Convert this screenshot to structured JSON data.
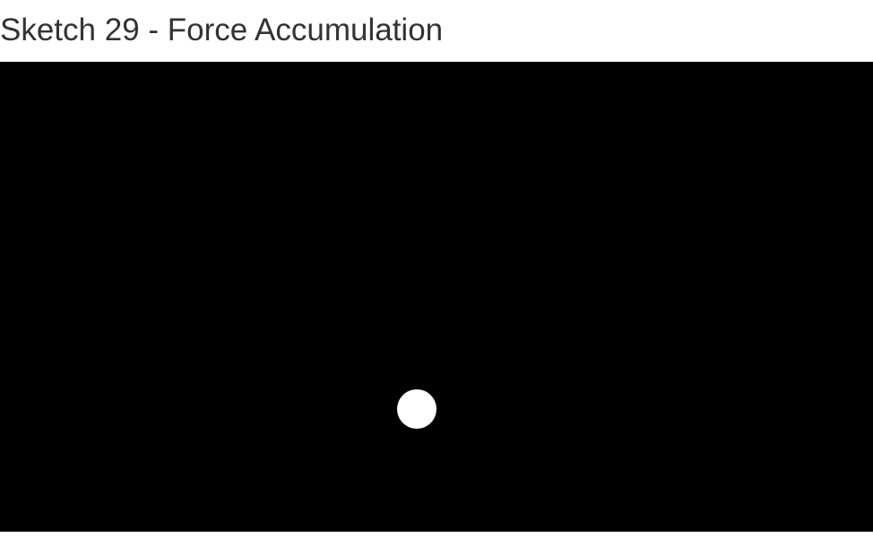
{
  "sketch": {
    "title": "Sketch 29 - Force Accumulation"
  },
  "canvas": {
    "background_color": "#000000",
    "ball_color": "#ffffff"
  }
}
